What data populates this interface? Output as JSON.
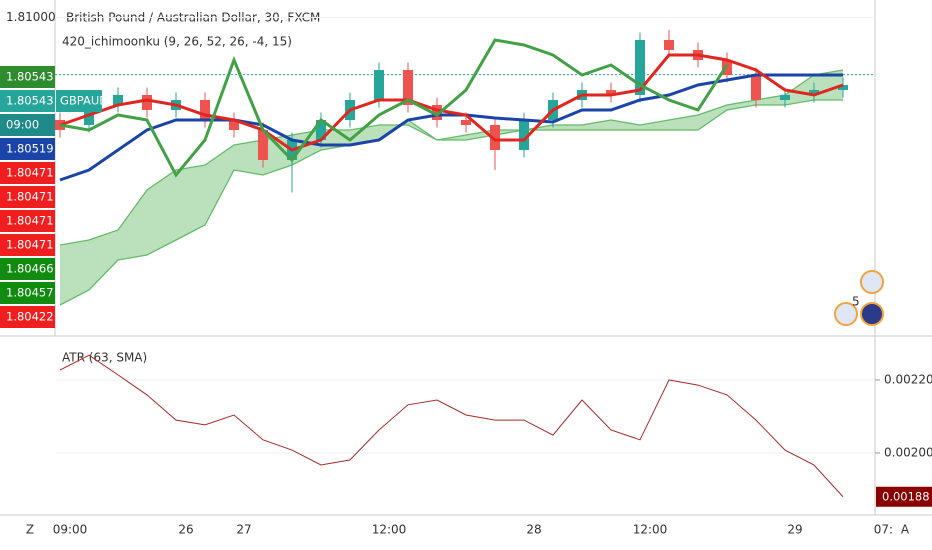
{
  "chart_data": [
    {
      "type": "candlestick",
      "title": "British Pound / Australian Dollar, 30, FXCM",
      "subtitle": "420_ichimoonku (9, 26, 52, 26, -4, 15)",
      "categories": [
        "09:00",
        null,
        null,
        null,
        "26",
        null,
        "27",
        null,
        null,
        null,
        null,
        "12:00",
        null,
        null,
        null,
        null,
        "28",
        null,
        null,
        null,
        "12:00",
        null,
        null,
        null,
        null,
        "29",
        null,
        null
      ],
      "axis_cut_label": "07:",
      "ylim": [
        1.7846,
        1.8114
      ],
      "yticks": [
        {
          "value": 1.81,
          "label": "1.81000"
        }
      ],
      "last_price": 1.80543,
      "up_color": "#26a69a",
      "down_color": "#ef5350",
      "open": [
        1.8018,
        1.8014,
        1.803,
        1.8038,
        1.8026,
        1.8034,
        1.8018,
        1.801,
        1.7986,
        1.8002,
        1.8018,
        1.8034,
        1.8058,
        1.803,
        1.8018,
        1.8014,
        1.7994,
        1.8018,
        1.8034,
        1.8042,
        1.8038,
        1.8082,
        1.8074,
        1.8066,
        1.8054,
        1.8034,
        1.8038,
        1.8042
      ],
      "high": [
        1.8024,
        1.8036,
        1.8044,
        1.8044,
        1.804,
        1.804,
        1.8024,
        1.8016,
        1.8008,
        1.8024,
        1.804,
        1.8064,
        1.8064,
        1.8036,
        1.8024,
        1.802,
        1.8024,
        1.804,
        1.8048,
        1.8048,
        1.8088,
        1.809,
        1.808,
        1.8072,
        1.806,
        1.8044,
        1.8048,
        1.8052
      ],
      "low": [
        1.8004,
        1.8008,
        1.8024,
        1.802,
        1.802,
        1.8012,
        1.8004,
        1.798,
        1.796,
        1.7996,
        1.8012,
        1.8028,
        1.8024,
        1.8012,
        1.8008,
        1.7978,
        1.7988,
        1.8012,
        1.8028,
        1.8032,
        1.8032,
        1.8068,
        1.806,
        1.8048,
        1.8028,
        1.8028,
        1.8032,
        1.8036
      ],
      "close": [
        1.801,
        1.803,
        1.8038,
        1.8026,
        1.8034,
        1.8018,
        1.801,
        1.7986,
        1.8002,
        1.8018,
        1.8034,
        1.8058,
        1.803,
        1.8018,
        1.8014,
        1.7994,
        1.8018,
        1.8034,
        1.8042,
        1.8038,
        1.8082,
        1.8074,
        1.8066,
        1.8054,
        1.8034,
        1.8038,
        1.8042,
        1.8046
      ],
      "cloud": {
        "color": "#66bb6a",
        "span_a": [
          1.7918,
          1.7922,
          1.793,
          1.7962,
          1.7978,
          1.7982,
          1.7998,
          1.8002,
          1.8006,
          1.801,
          1.801,
          1.8014,
          1.8014,
          1.8002,
          1.8002,
          1.8006,
          1.801,
          1.8014,
          1.8014,
          1.8018,
          1.8014,
          1.8018,
          1.8022,
          1.803,
          1.8034,
          1.8038,
          1.8054,
          1.8058
        ],
        "span_b": [
          1.787,
          1.7882,
          1.7906,
          1.791,
          1.7922,
          1.7934,
          1.7978,
          1.7974,
          1.7982,
          1.7994,
          1.7998,
          1.8002,
          1.8018,
          1.8002,
          1.8006,
          1.801,
          1.801,
          1.801,
          1.801,
          1.801,
          1.801,
          1.801,
          1.801,
          1.8026,
          1.803,
          1.803,
          1.8034,
          1.8034
        ]
      },
      "series": [
        {
          "color": "#1a44a8",
          "values": [
            1.797,
            1.7978,
            1.7994,
            1.801,
            1.8018,
            1.8018,
            1.8018,
            1.8014,
            1.8002,
            1.7998,
            1.7998,
            1.8002,
            1.8018,
            1.8022,
            1.8022,
            1.80196,
            1.8018,
            1.80164,
            1.8026,
            1.8026,
            1.8034,
            1.8038,
            1.8046,
            1.805,
            1.8054,
            1.8054,
            1.8054,
            1.8054
          ]
        },
        {
          "color": "#e0261f",
          "values": [
            1.8014,
            1.8022,
            1.803,
            1.8034,
            1.803,
            1.8022,
            1.8018,
            1.801,
            1.7994,
            1.8002,
            1.8026,
            1.8034,
            1.8034,
            1.8026,
            1.8022,
            1.8002,
            1.8002,
            1.8026,
            1.8038,
            1.8038,
            1.8042,
            1.807,
            1.807,
            1.8066,
            1.8058,
            1.8042,
            1.8038,
            1.8046
          ]
        },
        {
          "color": "#43a047",
          "values": [
            1.8014,
            1.801,
            1.8022,
            1.8018,
            1.7974,
            1.8002,
            1.8066,
            1.801,
            1.7986,
            1.8018,
            1.8002,
            1.8022,
            1.8034,
            1.8022,
            1.8042,
            1.8082,
            1.8078,
            1.807,
            1.8054,
            1.8062,
            1.8046,
            1.8034,
            1.8026,
            1.8062,
            null,
            null,
            null,
            null
          ]
        }
      ],
      "price_labels": [
        {
          "text": "1.80543",
          "color": "#2e8b2e"
        },
        {
          "text": "1.80543",
          "color": "#26a69a",
          "tag": "GBPAUD"
        },
        {
          "text": "09:00",
          "color": "#1f8a8a"
        },
        {
          "text": "1.80519",
          "color": "#1a44a8"
        },
        {
          "text": "1.80471",
          "color": "#f01e1e"
        },
        {
          "text": "1.80471",
          "color": "#f01e1e"
        },
        {
          "text": "1.80471",
          "color": "#f01e1e"
        },
        {
          "text": "1.80471",
          "color": "#f01e1e"
        },
        {
          "text": "1.80466",
          "color": "#118c11"
        },
        {
          "text": "1.80457",
          "color": "#118c11"
        },
        {
          "text": "1.80422",
          "color": "#f01e1e"
        }
      ],
      "event_count": "5"
    },
    {
      "type": "line",
      "title": "ATR (63, SMA)",
      "ylim": [
        0.00183,
        0.002315
      ],
      "yticks": [
        {
          "value": 0.0022,
          "label": "0.00220"
        },
        {
          "value": 0.002,
          "label": "0.00200"
        }
      ],
      "series": [
        {
          "color": "#a52a2a",
          "values": [
            0.002227,
            0.002268,
            0.002214,
            0.002159,
            0.00209,
            0.002077,
            0.002104,
            0.002036,
            0.002008,
            0.001967,
            0.001981,
            0.002063,
            0.002132,
            0.002145,
            0.002104,
            0.00209,
            0.00209,
            0.002049,
            0.002145,
            0.002063,
            0.002036,
            0.0022,
            0.002186,
            0.002159,
            0.00209,
            0.002008,
            0.001967,
            0.00188
          ]
        }
      ]
    }
  ],
  "toolbar": {
    "left": "Z",
    "right": "A"
  }
}
